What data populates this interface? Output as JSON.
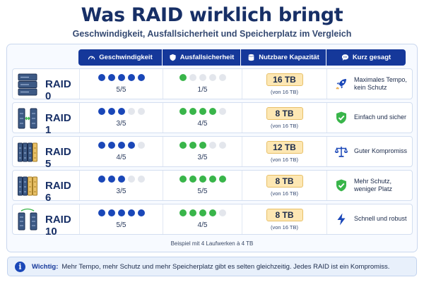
{
  "title": "Was RAID wirklich bringt",
  "subtitle": "Geschwindigkeit, Ausfallsicherheit und Speicherplatz im Vergleich",
  "header": {
    "speed": "Geschwindigkeit",
    "safety": "Ausfallsicherheit",
    "capacity": "Nutzbare Kapazität",
    "summary": "Kurz gesagt"
  },
  "rows": [
    {
      "name": "RAID 0",
      "speed": 5,
      "speed_label": "5/5",
      "safety": 1,
      "safety_label": "1/5",
      "capacity": "16 TB",
      "capacity_sub": "(von 16 TB)",
      "summary": "Maximales Tempo, kein Schutz",
      "summary_icon": "rocket-icon",
      "drive_icon": "raid0-stack-icon"
    },
    {
      "name": "RAID 1",
      "speed": 3,
      "speed_label": "3/5",
      "safety": 4,
      "safety_label": "4/5",
      "capacity": "8 TB",
      "capacity_sub": "(von 16 TB)",
      "summary": "Einfach und sicher",
      "summary_icon": "shield-check-icon",
      "drive_icon": "raid1-mirror-icon"
    },
    {
      "name": "RAID 5",
      "speed": 4,
      "speed_label": "4/5",
      "safety": 3,
      "safety_label": "3/5",
      "capacity": "12 TB",
      "capacity_sub": "(von 16 TB)",
      "summary": "Guter Kompromiss",
      "summary_icon": "scale-icon",
      "drive_icon": "raid5-drives-icon"
    },
    {
      "name": "RAID 6",
      "speed": 3,
      "speed_label": "3/5",
      "safety": 5,
      "safety_label": "5/5",
      "capacity": "8 TB",
      "capacity_sub": "(von 16 TB)",
      "summary": "Mehr Schutz, weniger Platz",
      "summary_icon": "shield-check-icon",
      "drive_icon": "raid6-drives-icon"
    },
    {
      "name": "RAID 10",
      "speed": 5,
      "speed_label": "5/5",
      "safety": 4,
      "safety_label": "4/5",
      "capacity": "8 TB",
      "capacity_sub": "(von 16 TB)",
      "summary": "Schnell und robust",
      "summary_icon": "lightning-icon",
      "drive_icon": "raid10-drives-icon"
    }
  ],
  "footnote": "Beispiel mit 4 Laufwerken à 4 TB",
  "note": {
    "label": "Wichtig:",
    "text": "Mehr Tempo, mehr Schutz und mehr Speicherplatz gibt es selten gleichzeitig. Jedes RAID ist ein Kompromiss."
  },
  "colors": {
    "header_bg": "#15389a",
    "speed_dot": "#1a47b8",
    "safety_dot": "#39b54a",
    "empty_dot": "#e3e6ec",
    "capacity_bg": "#fde7b3",
    "drive_gold": "#e8c067"
  }
}
